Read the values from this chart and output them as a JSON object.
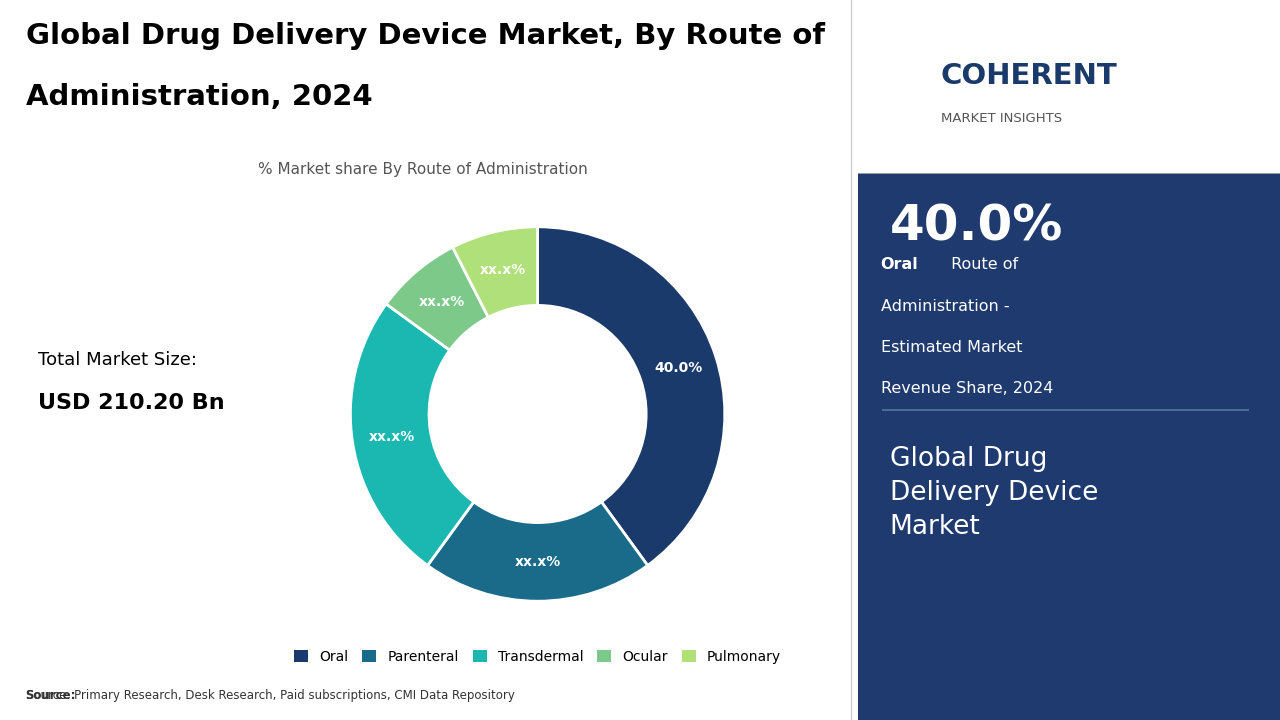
{
  "title_line1": "Global Drug Delivery Device Market, By Route of",
  "title_line2": "Administration, 2024",
  "subtitle": "% Market share By Route of Administration",
  "source_text": "Source: Primary Research, Desk Research, Paid subscriptions, CMI Data Repository",
  "pie_labels": [
    "Oral",
    "Parenteral",
    "Transdermal",
    "Ocular",
    "Pulmonary"
  ],
  "pie_values": [
    40.0,
    20.0,
    25.0,
    7.5,
    7.5
  ],
  "pie_colors": [
    "#1a3a6b",
    "#1a6b8a",
    "#1ab8b0",
    "#7dc98a",
    "#b0e07a"
  ],
  "pie_display_labels": [
    "40.0%",
    "xx.x%",
    "xx.x%",
    "xx.x%",
    "xx.x%"
  ],
  "right_panel_bg": "#1e3a6e",
  "highlight_pct": "40.0%",
  "highlight_label_bold": "Oral",
  "highlight_label_rest": " Route of\nAdministration -\nEstimated Market\nRevenue Share, 2024",
  "bottom_text": "Global Drug\nDelivery Device\nMarket",
  "logo_text_top": "COHERENT",
  "logo_text_bottom": "MARKET INSIGHTS",
  "legend_items": [
    "Oral",
    "Parenteral",
    "Transdermal",
    "Ocular",
    "Pulmonary"
  ],
  "legend_colors": [
    "#1a3a6b",
    "#1a6b8a",
    "#1ab8b0",
    "#7dc98a",
    "#b0e07a"
  ],
  "total_market_label": "Total Market Size:",
  "total_market_value": "USD 210.20 Bn"
}
